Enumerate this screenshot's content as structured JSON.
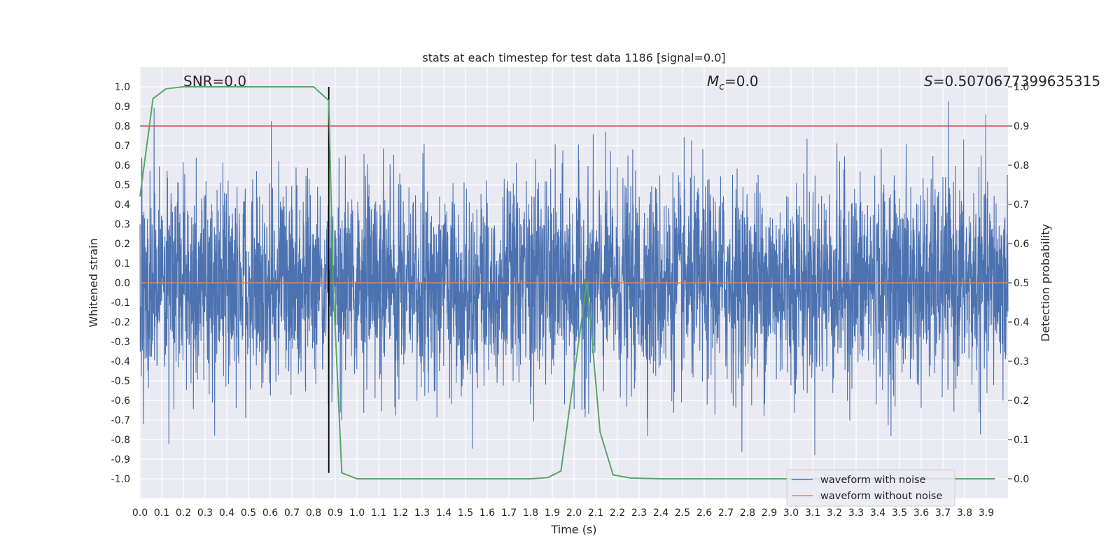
{
  "chart_data": {
    "type": "line",
    "title": "stats at each timestep for test data 1186 [signal=0.0]",
    "xlabel": "Time (s)",
    "ylabel": "Whitened strain",
    "y2label": "Detection probability",
    "xlim": [
      0.0,
      4.0
    ],
    "ylim": [
      -1.1,
      1.1
    ],
    "y2lim": [
      -0.05,
      1.05
    ],
    "x_ticks": [
      "0.0",
      "0.1",
      "0.2",
      "0.3",
      "0.4",
      "0.5",
      "0.6",
      "0.7",
      "0.8",
      "0.9",
      "1.0",
      "1.1",
      "1.2",
      "1.3",
      "1.4",
      "1.5",
      "1.6",
      "1.7",
      "1.8",
      "1.9",
      "2.0",
      "2.1",
      "2.2",
      "2.3",
      "2.4",
      "2.5",
      "2.6",
      "2.7",
      "2.8",
      "2.9",
      "3.0",
      "3.1",
      "3.2",
      "3.3",
      "3.4",
      "3.5",
      "3.6",
      "3.7",
      "3.8",
      "3.9"
    ],
    "y_ticks": [
      "1.0",
      "0.9",
      "0.8",
      "0.7",
      "0.6",
      "0.5",
      "0.4",
      "0.3",
      "0.2",
      "0.1",
      "0.0",
      "-0.1",
      "-0.2",
      "-0.3",
      "-0.4",
      "-0.5",
      "-0.6",
      "-0.7",
      "-0.8",
      "-0.9",
      "-1.0"
    ],
    "y2_ticks": [
      "1.0",
      "0.9",
      "0.8",
      "0.7",
      "0.6",
      "0.5",
      "0.4",
      "0.3",
      "0.2",
      "0.1",
      "0.0"
    ],
    "grid": true,
    "legend_position": "lower-right",
    "annotations": {
      "snr": "SNR=0.0",
      "mc_symbol": "M",
      "mc_sub": "c",
      "mc_value": "=0.0",
      "s_symbol": "S",
      "s_value": "=0.5070677399635315"
    },
    "series": [
      {
        "name": "waveform with noise",
        "color": "#4c72b0",
        "kind": "noise",
        "amplitude_envelope": [
          -0.97,
          1.0
        ]
      },
      {
        "name": "waveform without noise",
        "color": "#dd8452",
        "y": 0.0
      }
    ],
    "detection_probability": {
      "color": "#55a868",
      "x": [
        0.0,
        0.06,
        0.12,
        0.2,
        0.3,
        0.4,
        0.5,
        0.6,
        0.7,
        0.8,
        0.87,
        0.89,
        0.93,
        1.0,
        1.2,
        1.4,
        1.6,
        1.8,
        1.88,
        1.94,
        2.06,
        2.12,
        2.18,
        2.26,
        2.4,
        2.6,
        3.0,
        3.5,
        3.94
      ],
      "y": [
        0.72,
        0.97,
        0.995,
        1.0,
        1.0,
        1.0,
        1.0,
        1.0,
        1.0,
        1.0,
        0.965,
        0.5,
        0.015,
        0.0,
        0.0,
        0.0,
        0.0,
        0.0,
        0.003,
        0.02,
        0.505,
        0.12,
        0.01,
        0.002,
        0.0,
        0.0,
        0.0,
        0.0,
        0.0
      ]
    },
    "threshold_line": {
      "y2": 0.9,
      "color": "#c44e52"
    },
    "marker_line": {
      "x": 0.87,
      "color": "#000000"
    }
  }
}
